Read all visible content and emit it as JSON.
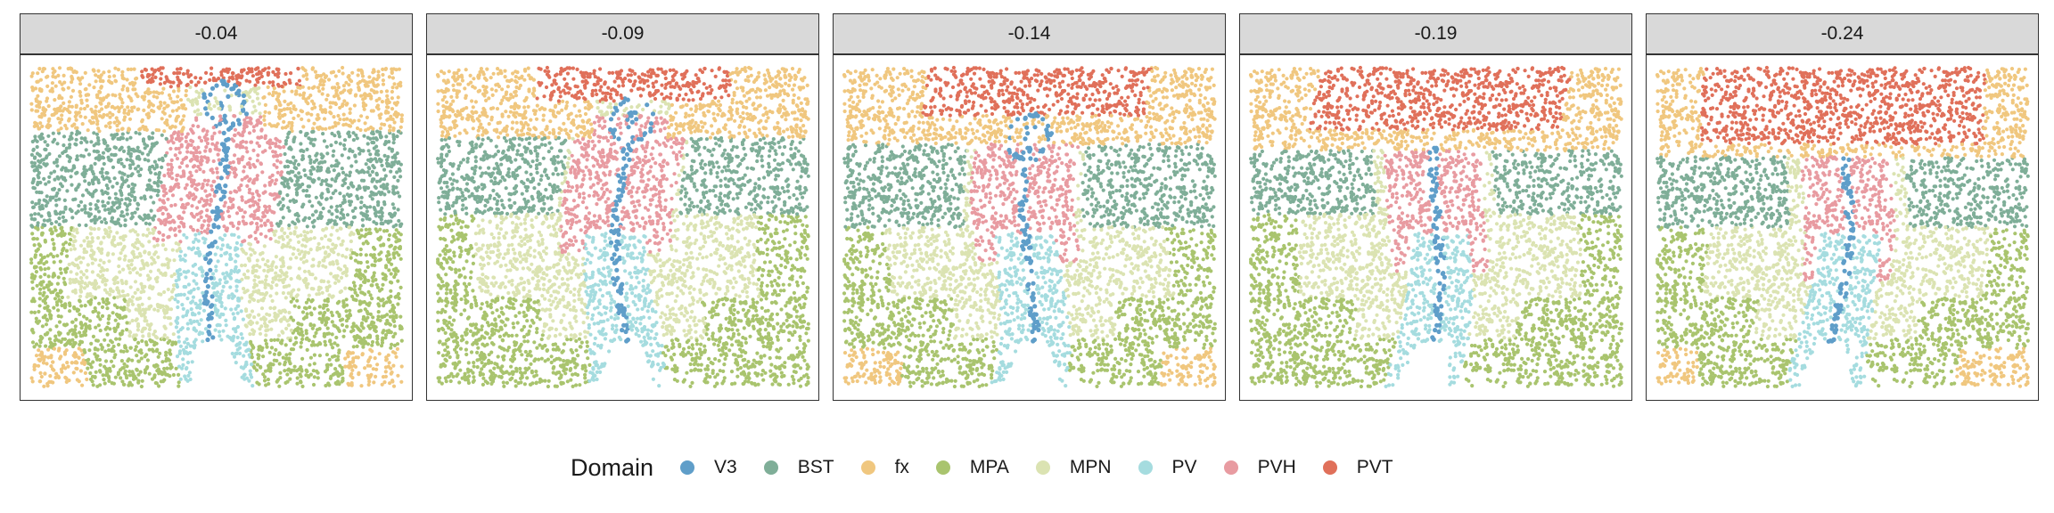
{
  "chart_data": {
    "type": "scatter",
    "facet_labels": [
      "-0.04",
      "-0.09",
      "-0.14",
      "-0.19",
      "-0.24"
    ],
    "legend": {
      "title": "Domain",
      "position": "bottom",
      "entries": [
        {
          "label": "V3",
          "color": "#5f9ec9"
        },
        {
          "label": "BST",
          "color": "#7fae98"
        },
        {
          "label": "fx",
          "color": "#f0c77f"
        },
        {
          "label": "MPA",
          "color": "#a9c46e"
        },
        {
          "label": "MPN",
          "color": "#dbe3b2"
        },
        {
          "label": "PV",
          "color": "#a5dcdf"
        },
        {
          "label": "PVH",
          "color": "#e89ba1"
        },
        {
          "label": "PVT",
          "color": "#e0705a"
        }
      ]
    },
    "axes": "hidden",
    "grid": false
  }
}
